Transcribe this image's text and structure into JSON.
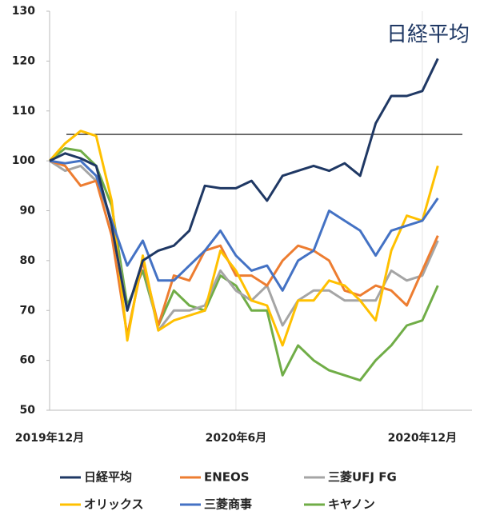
{
  "chart_data": {
    "type": "line",
    "annotation": "日経平均",
    "x": [
      0,
      0.5,
      1,
      1.5,
      2,
      2.5,
      3,
      3.5,
      4,
      4.5,
      5,
      5.5,
      6,
      6.5,
      7,
      7.5,
      8,
      8.5,
      9,
      9.5,
      10,
      10.5,
      11,
      11.5,
      12,
      12.5
    ],
    "xlim": [
      0,
      13.6
    ],
    "xticks": [
      {
        "value": 0,
        "label": "2019年12月"
      },
      {
        "value": 6,
        "label": "2020年6月"
      },
      {
        "value": 12,
        "label": "2020年12月"
      }
    ],
    "ylim": [
      50,
      130
    ],
    "yticks": [
      50,
      60,
      70,
      80,
      90,
      100,
      110,
      120,
      130
    ],
    "reference_line": 105.3,
    "series": [
      {
        "name": "日経平均",
        "color": "#1f3864",
        "values": [
          100,
          101.5,
          100.5,
          99,
          87,
          70,
          80,
          82,
          83,
          86,
          95,
          94.5,
          94.5,
          96,
          92,
          97,
          98,
          99,
          98,
          99.5,
          97,
          107.5,
          113,
          113,
          114,
          120.5
        ]
      },
      {
        "name": "ENEOS",
        "color": "#ed7d31",
        "values": [
          100,
          99,
          95,
          96,
          85,
          65,
          80,
          67,
          77,
          76,
          82,
          83,
          77,
          77,
          75,
          80,
          83,
          82,
          80,
          74,
          73,
          75,
          74,
          71,
          78,
          85
        ]
      },
      {
        "name": "三菱UFJ FG",
        "color": "#a5a5a5",
        "values": [
          100,
          98,
          99,
          96,
          88,
          70,
          80,
          66,
          70,
          70,
          71,
          78,
          74,
          72,
          75,
          67,
          72,
          74,
          74,
          72,
          72,
          72,
          78,
          76,
          77,
          84
        ]
      },
      {
        "name": "オリックス",
        "color": "#ffc000",
        "values": [
          100,
          103.5,
          106,
          105,
          92,
          64,
          81,
          66,
          68,
          69,
          70,
          82,
          78,
          72,
          71,
          63,
          72,
          72,
          76,
          75,
          72,
          68,
          82,
          89,
          88,
          99
        ]
      },
      {
        "name": "三菱商事",
        "color": "#4472c4",
        "values": [
          100,
          99.5,
          100,
          97,
          88,
          79,
          84,
          76,
          76,
          79,
          82,
          86,
          81,
          78,
          79,
          74,
          80,
          82,
          90,
          88,
          86,
          81,
          86,
          87,
          88,
          92.5
        ]
      },
      {
        "name": "キヤノン",
        "color": "#70ad47",
        "values": [
          100,
          102.5,
          102,
          99,
          91,
          71,
          78,
          67,
          74,
          71,
          70,
          77,
          75,
          70,
          70,
          57,
          63,
          60,
          58,
          57,
          56,
          60,
          63,
          67,
          68,
          75
        ]
      }
    ]
  }
}
